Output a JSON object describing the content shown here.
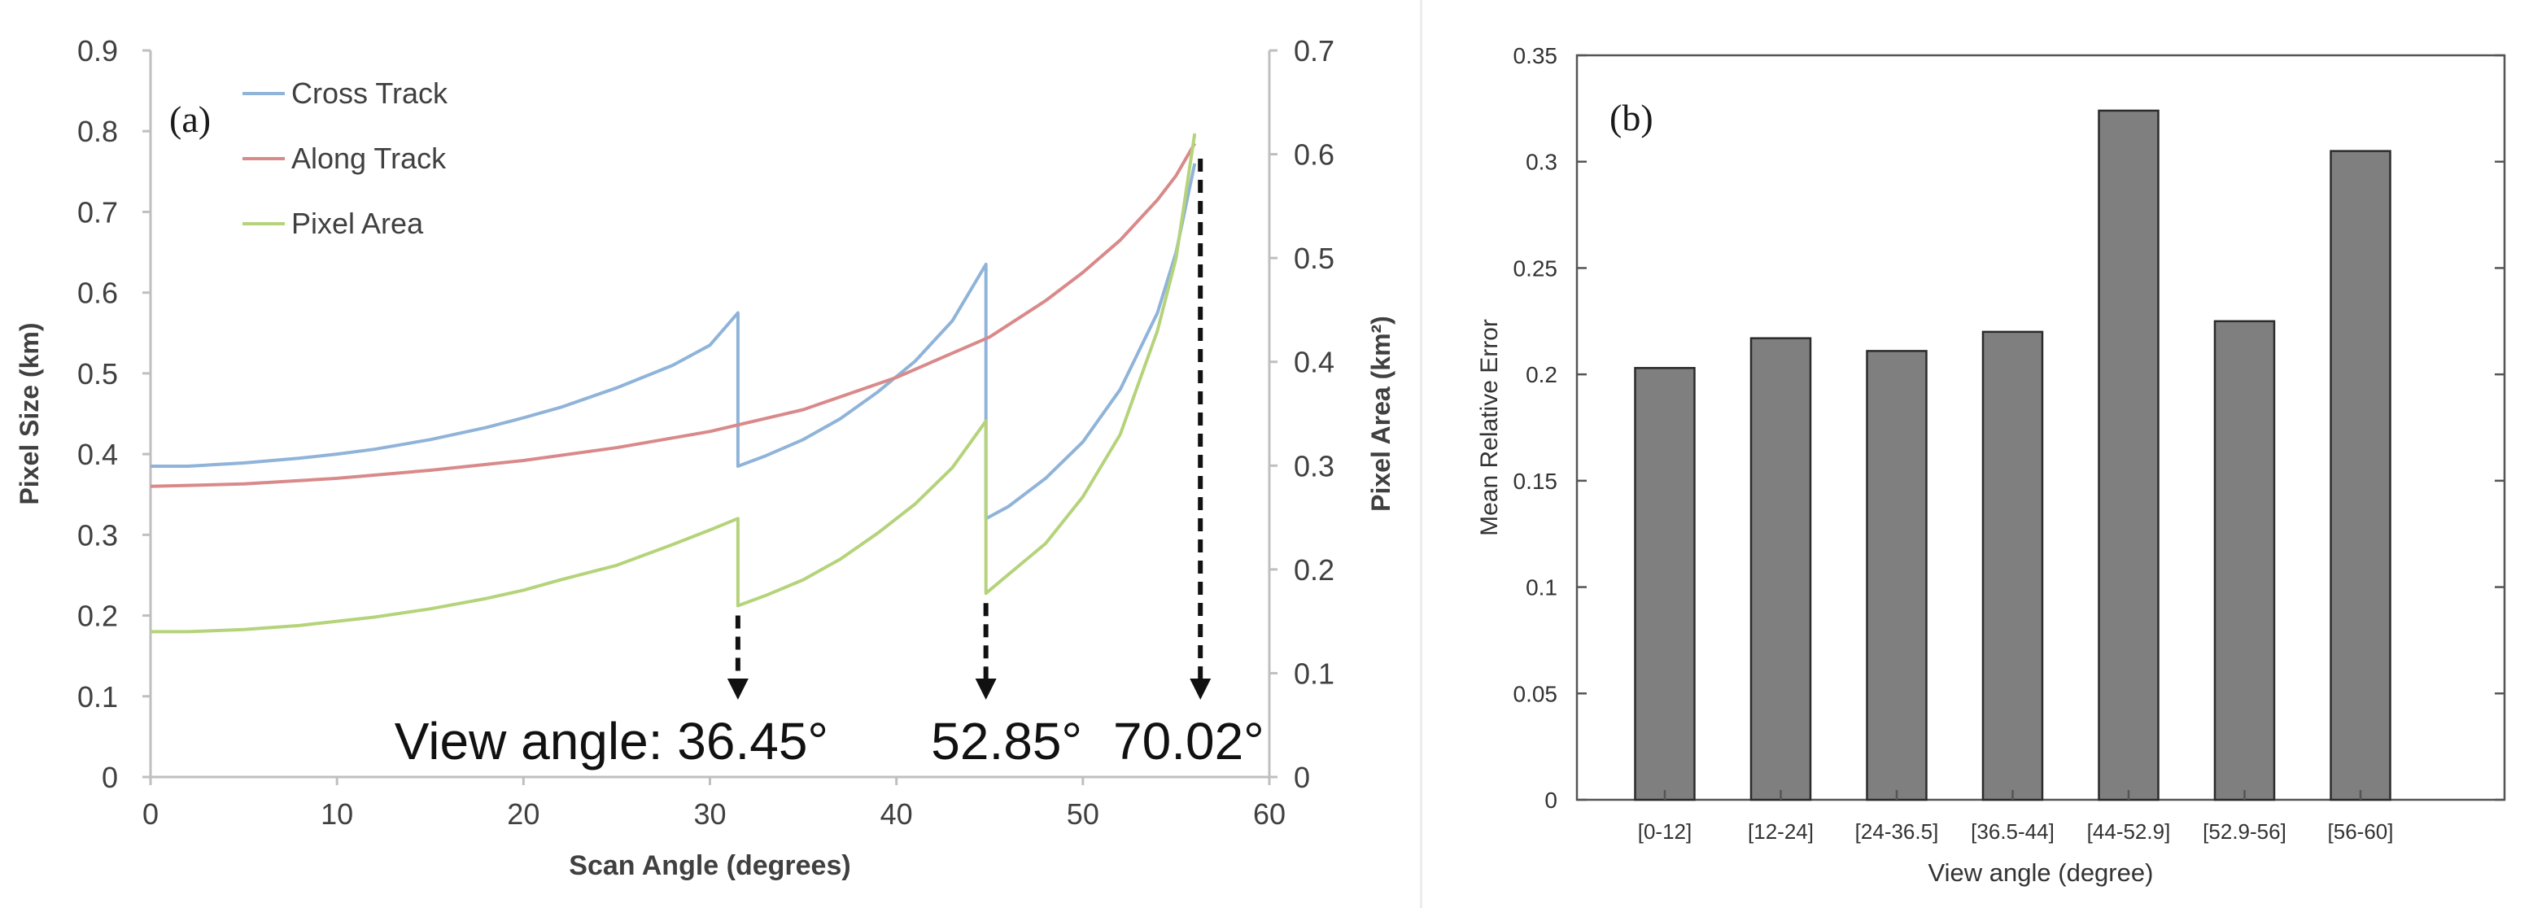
{
  "chart_data": [
    {
      "id": "a",
      "type": "line",
      "panel_label": "(a)",
      "xlabel": "Scan Angle (degrees)",
      "ylabel_left": "Pixel Size (km)",
      "ylabel_right": "Pixel Area (km²)",
      "xlim": [
        0,
        60
      ],
      "ylim_left": [
        0,
        0.9
      ],
      "ylim_right": [
        0,
        0.7
      ],
      "xticks": [
        "0",
        "10",
        "20",
        "30",
        "40",
        "50",
        "60"
      ],
      "yticks_left": [
        "0",
        "0.1",
        "0.2",
        "0.3",
        "0.4",
        "0.5",
        "0.6",
        "0.7",
        "0.8",
        "0.9"
      ],
      "yticks_right": [
        "0",
        "0.1",
        "0.2",
        "0.3",
        "0.4",
        "0.5",
        "0.6",
        "0.7"
      ],
      "series": [
        {
          "name": "Cross Track",
          "color": "#8fb3d9",
          "axis": "left",
          "x": [
            0,
            2,
            5,
            8,
            10,
            12,
            15,
            18,
            20,
            22,
            25,
            28,
            30,
            31.5,
            31.5,
            33,
            35,
            37,
            39,
            41,
            43,
            44.8,
            44.8,
            46,
            48,
            50,
            52,
            54,
            55,
            56
          ],
          "y": [
            0.385,
            0.385,
            0.389,
            0.395,
            0.4,
            0.406,
            0.418,
            0.433,
            0.445,
            0.458,
            0.482,
            0.51,
            0.535,
            0.575,
            0.385,
            0.398,
            0.418,
            0.444,
            0.477,
            0.515,
            0.565,
            0.635,
            0.32,
            0.335,
            0.37,
            0.415,
            0.48,
            0.575,
            0.65,
            0.76
          ]
        },
        {
          "name": "Along Track",
          "color": "#d9898a",
          "axis": "left",
          "x": [
            0,
            5,
            10,
            15,
            20,
            25,
            30,
            35,
            40,
            45,
            48,
            50,
            52,
            54,
            55,
            56
          ],
          "y": [
            0.36,
            0.363,
            0.37,
            0.38,
            0.392,
            0.408,
            0.428,
            0.455,
            0.495,
            0.545,
            0.59,
            0.625,
            0.665,
            0.715,
            0.745,
            0.785
          ]
        },
        {
          "name": "Pixel Area",
          "color": "#b5d37a",
          "axis": "right",
          "x": [
            0,
            2,
            5,
            8,
            10,
            12,
            15,
            18,
            20,
            22,
            25,
            28,
            30,
            31.5,
            31.5,
            33,
            35,
            37,
            39,
            41,
            43,
            44.8,
            44.8,
            46,
            48,
            50,
            52,
            54,
            55,
            56
          ],
          "y": [
            0.14,
            0.14,
            0.142,
            0.146,
            0.15,
            0.154,
            0.162,
            0.172,
            0.18,
            0.19,
            0.204,
            0.224,
            0.238,
            0.249,
            0.165,
            0.175,
            0.19,
            0.21,
            0.235,
            0.263,
            0.298,
            0.343,
            0.177,
            0.195,
            0.225,
            0.27,
            0.33,
            0.43,
            0.5,
            0.62
          ]
        }
      ],
      "annotations": [
        {
          "text": "View angle: 36.45°",
          "x": 31.5
        },
        {
          "text": "52.85°",
          "x": 44.8
        },
        {
          "text": "70.02°",
          "x": 56.3
        }
      ]
    },
    {
      "id": "b",
      "type": "bar",
      "panel_label": "(b)",
      "xlabel": "View angle (degree)",
      "ylabel": "Mean Relative Error",
      "ylim": [
        0,
        0.35
      ],
      "yticks": [
        "0",
        "0.05",
        "0.1",
        "0.15",
        "0.2",
        "0.25",
        "0.3",
        "0.35"
      ],
      "categories": [
        "[0-12]",
        "[12-24]",
        "[24-36.5]",
        "[36.5-44]",
        "[44-52.9]",
        "[52.9-56]",
        "[56-60]"
      ],
      "values": [
        0.203,
        0.217,
        0.211,
        0.22,
        0.324,
        0.225,
        0.305
      ],
      "bar_color": "#7f7f7f"
    }
  ]
}
